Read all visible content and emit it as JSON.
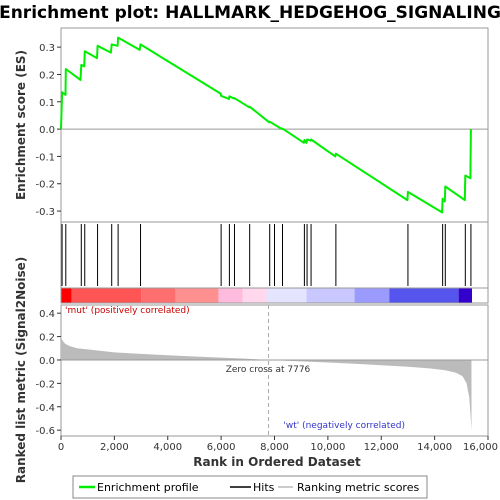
{
  "chart_data": {
    "type": "line",
    "title": "Enrichment plot: HALLMARK_HEDGEHOG_SIGNALING",
    "xlabel": "Rank in Ordered Dataset",
    "x_ticks": [
      0,
      2000,
      4000,
      6000,
      8000,
      10000,
      12000,
      14000,
      16000
    ],
    "x_tick_labels": [
      "0",
      "2,000",
      "4,000",
      "6,000",
      "8,000",
      "10,000",
      "12,000",
      "14,000",
      "16,000"
    ],
    "xlim": [
      0,
      16000
    ],
    "top_panel": {
      "ylabel": "Enrichment score (ES)",
      "ylim": [
        -0.34,
        0.37
      ],
      "y_ticks": [
        -0.3,
        -0.2,
        -0.1,
        0.0,
        0.1,
        0.2,
        0.3
      ],
      "y_tick_labels": [
        "-0.3",
        "-0.2",
        "-0.1",
        "0.0",
        "0.1",
        "0.2",
        "0.3"
      ],
      "series": [
        {
          "name": "Enrichment profile",
          "color": "#00ee00",
          "x": [
            0,
            40,
            170,
            180,
            730,
            760,
            870,
            890,
            1350,
            1370,
            1870,
            1900,
            2120,
            2140,
            2950,
            2980,
            5980,
            6000,
            6290,
            6310,
            6480,
            6500,
            7050,
            7070,
            7800,
            7820,
            8280,
            8300,
            9100,
            9120,
            9200,
            9220,
            9350,
            9370,
            10280,
            10300,
            12980,
            13000,
            14280,
            14300,
            14380,
            14400,
            15130,
            15150,
            15340,
            15360
          ],
          "y": [
            0.0,
            0.135,
            0.125,
            0.22,
            0.18,
            0.235,
            0.23,
            0.285,
            0.26,
            0.305,
            0.28,
            0.31,
            0.305,
            0.335,
            0.29,
            0.31,
            0.13,
            0.122,
            0.11,
            0.12,
            0.112,
            0.113,
            0.08,
            0.082,
            0.025,
            0.027,
            0.0,
            0.002,
            -0.05,
            -0.04,
            -0.05,
            -0.038,
            -0.042,
            -0.038,
            -0.1,
            -0.09,
            -0.26,
            -0.23,
            -0.305,
            -0.255,
            -0.265,
            -0.21,
            -0.26,
            -0.17,
            -0.18,
            0.0
          ]
        }
      ],
      "hits": [
        40,
        180,
        760,
        890,
        1370,
        1900,
        2140,
        2980,
        6000,
        6310,
        6500,
        7070,
        7820,
        8000,
        8300,
        9120,
        9220,
        9370,
        10300,
        13000,
        14300,
        14400,
        15150,
        15360
      ]
    },
    "heatmap_bar": {
      "label_left": "'mut' (positively correlated)",
      "label_right": "'wt' (negatively correlated)",
      "segments": [
        {
          "from": 0,
          "to": 400,
          "color": "#ff0000"
        },
        {
          "from": 400,
          "to": 3000,
          "color": "#ff5555"
        },
        {
          "from": 3000,
          "to": 4300,
          "color": "#ff6f6f"
        },
        {
          "from": 4300,
          "to": 5900,
          "color": "#ff9090"
        },
        {
          "from": 5900,
          "to": 6800,
          "color": "#ffbbdd"
        },
        {
          "from": 6800,
          "to": 7700,
          "color": "#ffd8ee"
        },
        {
          "from": 7700,
          "to": 9200,
          "color": "#e4e4ff"
        },
        {
          "from": 9200,
          "to": 11000,
          "color": "#c8c8ff"
        },
        {
          "from": 11000,
          "to": 12300,
          "color": "#9b9bff"
        },
        {
          "from": 12300,
          "to": 14900,
          "color": "#5555ee"
        },
        {
          "from": 14900,
          "to": 15400,
          "color": "#3300cc"
        }
      ]
    },
    "bottom_panel": {
      "ylabel": "Ranked list metric (Signal2Noise)",
      "ylim": [
        -0.65,
        0.47
      ],
      "y_ticks": [
        -0.6,
        -0.4,
        -0.2,
        0.0,
        0.2,
        0.4
      ],
      "y_tick_labels": [
        "-0.6",
        "-0.4",
        "-0.2",
        "0.0",
        "0.2",
        "0.4"
      ],
      "zero_cross_label": "Zero cross at 7776",
      "zero_cross": 7776,
      "metric_x": [
        0,
        50,
        150,
        300,
        600,
        1000,
        2000,
        3000,
        4000,
        5000,
        6000,
        7000,
        7776,
        9000,
        10000,
        11000,
        12000,
        13000,
        13800,
        14400,
        14800,
        15050,
        15200,
        15300,
        15360,
        15380
      ],
      "metric_y": [
        0.2,
        0.17,
        0.14,
        0.12,
        0.1,
        0.09,
        0.065,
        0.052,
        0.04,
        0.03,
        0.02,
        0.01,
        0.0,
        -0.012,
        -0.022,
        -0.032,
        -0.045,
        -0.058,
        -0.072,
        -0.088,
        -0.11,
        -0.14,
        -0.2,
        -0.32,
        -0.52,
        -0.6
      ]
    },
    "legend": [
      {
        "label": "Enrichment profile",
        "color": "#00ee00"
      },
      {
        "label": "Hits",
        "color": "#000000"
      },
      {
        "label": "Ranking metric scores",
        "color": "#bbbbbb"
      }
    ]
  }
}
